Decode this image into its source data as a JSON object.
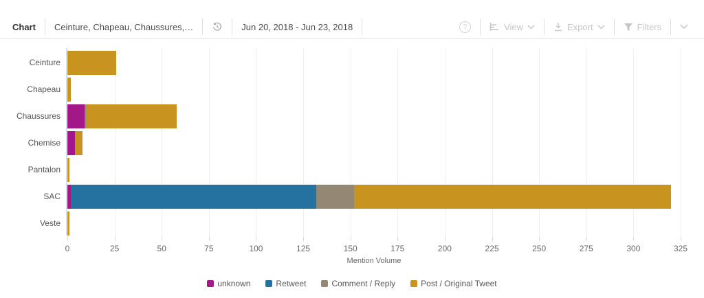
{
  "toolbar": {
    "chart_label": "Chart",
    "dataset_selector": "Ceinture, Chapeau, Chaussures,…",
    "date_range": "Jun 20, 2018 - Jun 23, 2018",
    "help_glyph": "?",
    "view_label": "View",
    "export_label": "Export",
    "filters_label": "Filters"
  },
  "icons": {
    "history": "clock-with-counterclockwise-arrow",
    "help": "circled-question-mark",
    "view": "horizontal-bar-chart",
    "export": "download-arrow",
    "filters": "funnel",
    "chevron": "chevron-down"
  },
  "colors": {
    "unknown": "#A21889",
    "retweet": "#2572A1",
    "comment_reply": "#948874",
    "post_original_tweet": "#C8931E",
    "gridline": "#ededf1",
    "y_axis": "#ccd5e8",
    "disabled_control": "#c6c6c6"
  },
  "chart_data": {
    "type": "bar",
    "orientation": "horizontal",
    "stacked": true,
    "title": "",
    "xlabel": "Mention Volume",
    "ylabel": "",
    "xlim": [
      0,
      325
    ],
    "xticks": [
      0,
      25,
      50,
      75,
      100,
      125,
      150,
      175,
      200,
      225,
      250,
      275,
      300,
      325
    ],
    "grid": true,
    "legend_position": "bottom",
    "categories": [
      "Ceinture",
      "Chapeau",
      "Chaussures",
      "Chemise",
      "Pantalon",
      "SAC",
      "Veste"
    ],
    "series": [
      {
        "name": "unknown",
        "color": "#A21889",
        "values": [
          0,
          0,
          9,
          4,
          0,
          2,
          0
        ]
      },
      {
        "name": "Retweet",
        "color": "#2572A1",
        "values": [
          0,
          0,
          0,
          0,
          0,
          130,
          0
        ]
      },
      {
        "name": "Comment / Reply",
        "color": "#948874",
        "values": [
          0,
          0,
          1,
          0,
          0,
          20,
          0
        ]
      },
      {
        "name": "Post / Original Tweet",
        "color": "#C8931E",
        "values": [
          26,
          2,
          48,
          4,
          1,
          168,
          1
        ]
      }
    ],
    "category_totals": [
      26,
      2,
      58,
      8,
      1,
      320,
      1
    ]
  }
}
